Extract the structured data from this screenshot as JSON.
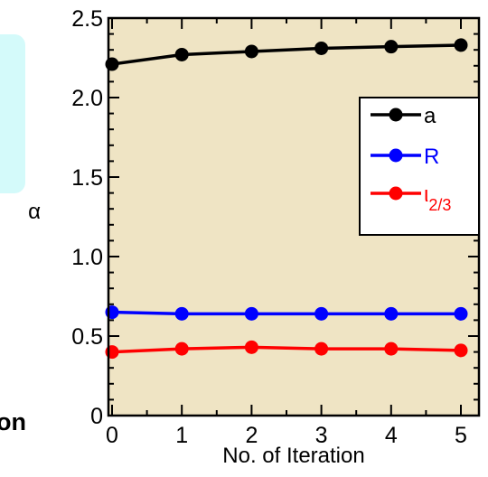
{
  "fragments": {
    "left_partial_text": "on"
  },
  "chart_data": {
    "type": "line",
    "title": "",
    "xlabel": "No. of Iteration",
    "ylabel": "α",
    "x": [
      0,
      1,
      2,
      3,
      4,
      5
    ],
    "xlim": [
      0,
      5
    ],
    "ylim": [
      0,
      2.5
    ],
    "xticks": [
      "0",
      "1",
      "2",
      "3",
      "4",
      "5"
    ],
    "yticks": [
      "0",
      "0.5",
      "1.0",
      "1.5",
      "2.0",
      "2.5"
    ],
    "ytick_values": [
      0,
      0.5,
      1.0,
      1.5,
      2.0,
      2.5
    ],
    "grid": false,
    "background": "#efe4c4",
    "legend_position": "right",
    "series": [
      {
        "name": "a",
        "color": "#000000",
        "values": [
          2.21,
          2.27,
          2.29,
          2.31,
          2.32,
          2.33
        ]
      },
      {
        "name": "R",
        "color": "#0000ff",
        "values": [
          0.65,
          0.64,
          0.64,
          0.64,
          0.64,
          0.64
        ]
      },
      {
        "name": "ι",
        "sub": "2/3",
        "color": "#ff0000",
        "values": [
          0.4,
          0.42,
          0.43,
          0.42,
          0.42,
          0.41
        ]
      }
    ]
  }
}
